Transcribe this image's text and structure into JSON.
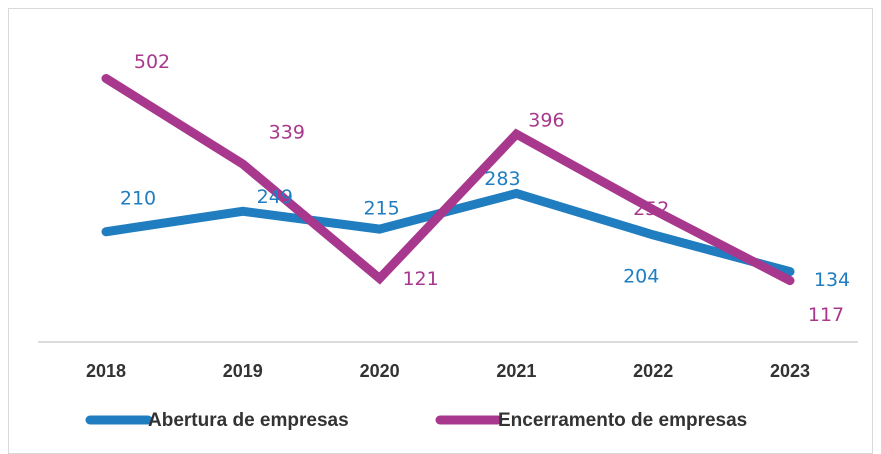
{
  "chart_data": {
    "type": "line",
    "categories": [
      "2018",
      "2019",
      "2020",
      "2021",
      "2022",
      "2023"
    ],
    "series": [
      {
        "name": "Abertura de empresas",
        "color": "#1f7dc0",
        "values": [
          210,
          249,
          215,
          283,
          204,
          134
        ]
      },
      {
        "name": "Encerramento de empresas",
        "color": "#a8388e",
        "values": [
          502,
          339,
          121,
          396,
          252,
          117
        ]
      }
    ],
    "ylim": [
      0,
      600
    ],
    "legend": "bottom"
  }
}
